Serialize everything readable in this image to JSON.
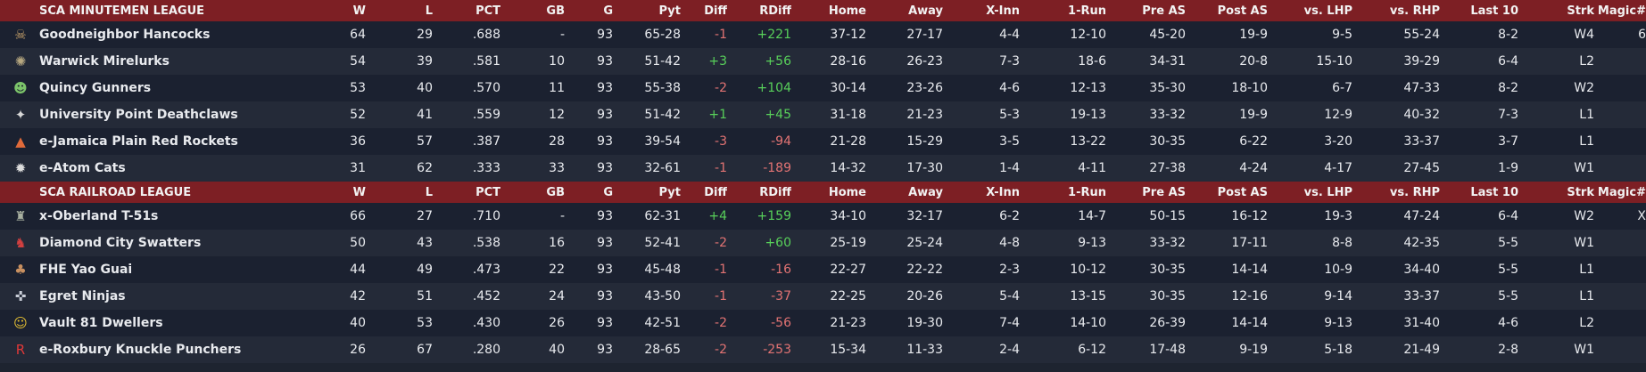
{
  "columns": {
    "w": "W",
    "l": "L",
    "pct": "PCT",
    "gb": "GB",
    "g": "G",
    "pyt": "Pyt",
    "diff": "Diff",
    "rdiff": "RDiff",
    "home": "Home",
    "away": "Away",
    "xinn": "X-Inn",
    "onerun": "1-Run",
    "preas": "Pre AS",
    "postas": "Post AS",
    "lhp": "vs. LHP",
    "rhp": "vs. RHP",
    "last10": "Last 10",
    "strk": "Strk",
    "magic": "Magic#"
  },
  "colors": {
    "header_bg": "#7d1f24",
    "positive": "#58d05a",
    "negative": "#e27373"
  },
  "leagues": [
    {
      "name": "SCA MINUTEMEN LEAGUE",
      "teams": [
        {
          "icon": "hancocks-icon",
          "glyph": "☠",
          "name": "Goodneighbor Hancocks",
          "w": "64",
          "l": "29",
          "pct": ".688",
          "gb": "-",
          "g": "93",
          "pyt": "65-28",
          "diff": "-1",
          "rdiff": "+221",
          "home": "37-12",
          "away": "27-17",
          "xinn": "4-4",
          "onerun": "12-10",
          "preas": "45-20",
          "postas": "19-9",
          "lhp": "9-5",
          "rhp": "55-24",
          "last10": "8-2",
          "strk": "W4",
          "magic": "6"
        },
        {
          "icon": "mirelurks-icon",
          "glyph": "✺",
          "name": "Warwick Mirelurks",
          "w": "54",
          "l": "39",
          "pct": ".581",
          "gb": "10",
          "g": "93",
          "pyt": "51-42",
          "diff": "+3",
          "rdiff": "+56",
          "home": "28-16",
          "away": "26-23",
          "xinn": "7-3",
          "onerun": "18-6",
          "preas": "34-31",
          "postas": "20-8",
          "lhp": "15-10",
          "rhp": "39-29",
          "last10": "6-4",
          "strk": "L2",
          "magic": ""
        },
        {
          "icon": "gunners-icon",
          "glyph": "☻",
          "name": "Quincy Gunners",
          "w": "53",
          "l": "40",
          "pct": ".570",
          "gb": "11",
          "g": "93",
          "pyt": "55-38",
          "diff": "-2",
          "rdiff": "+104",
          "home": "30-14",
          "away": "23-26",
          "xinn": "4-6",
          "onerun": "12-13",
          "preas": "35-30",
          "postas": "18-10",
          "lhp": "6-7",
          "rhp": "47-33",
          "last10": "8-2",
          "strk": "W2",
          "magic": ""
        },
        {
          "icon": "deathclaws-icon",
          "glyph": "✦",
          "name": "University Point Deathclaws",
          "w": "52",
          "l": "41",
          "pct": ".559",
          "gb": "12",
          "g": "93",
          "pyt": "51-42",
          "diff": "+1",
          "rdiff": "+45",
          "home": "31-18",
          "away": "21-23",
          "xinn": "5-3",
          "onerun": "19-13",
          "preas": "33-32",
          "postas": "19-9",
          "lhp": "12-9",
          "rhp": "40-32",
          "last10": "7-3",
          "strk": "L1",
          "magic": ""
        },
        {
          "icon": "red-rockets-icon",
          "glyph": "▲",
          "name": "e-Jamaica Plain Red Rockets",
          "w": "36",
          "l": "57",
          "pct": ".387",
          "gb": "28",
          "g": "93",
          "pyt": "39-54",
          "diff": "-3",
          "rdiff": "-94",
          "home": "21-28",
          "away": "15-29",
          "xinn": "3-5",
          "onerun": "13-22",
          "preas": "30-35",
          "postas": "6-22",
          "lhp": "3-20",
          "rhp": "33-37",
          "last10": "3-7",
          "strk": "L1",
          "magic": ""
        },
        {
          "icon": "atom-cats-icon",
          "glyph": "✹",
          "name": "e-Atom Cats",
          "w": "31",
          "l": "62",
          "pct": ".333",
          "gb": "33",
          "g": "93",
          "pyt": "32-61",
          "diff": "-1",
          "rdiff": "-189",
          "home": "14-32",
          "away": "17-30",
          "xinn": "1-4",
          "onerun": "4-11",
          "preas": "27-38",
          "postas": "4-24",
          "lhp": "4-17",
          "rhp": "27-45",
          "last10": "1-9",
          "strk": "W1",
          "magic": ""
        }
      ]
    },
    {
      "name": "SCA RAILROAD LEAGUE",
      "teams": [
        {
          "icon": "t51s-icon",
          "glyph": "♜",
          "name": "x-Oberland T-51s",
          "w": "66",
          "l": "27",
          "pct": ".710",
          "gb": "-",
          "g": "93",
          "pyt": "62-31",
          "diff": "+4",
          "rdiff": "+159",
          "home": "34-10",
          "away": "32-17",
          "xinn": "6-2",
          "onerun": "14-7",
          "preas": "50-15",
          "postas": "16-12",
          "lhp": "19-3",
          "rhp": "47-24",
          "last10": "6-4",
          "strk": "W2",
          "magic": "X"
        },
        {
          "icon": "swatters-icon",
          "glyph": "♞",
          "name": "Diamond City Swatters",
          "w": "50",
          "l": "43",
          "pct": ".538",
          "gb": "16",
          "g": "93",
          "pyt": "52-41",
          "diff": "-2",
          "rdiff": "+60",
          "home": "25-19",
          "away": "25-24",
          "xinn": "4-8",
          "onerun": "9-13",
          "preas": "33-32",
          "postas": "17-11",
          "lhp": "8-8",
          "rhp": "42-35",
          "last10": "5-5",
          "strk": "W1",
          "magic": ""
        },
        {
          "icon": "yao-guai-icon",
          "glyph": "♣",
          "name": "FHE Yao Guai",
          "w": "44",
          "l": "49",
          "pct": ".473",
          "gb": "22",
          "g": "93",
          "pyt": "45-48",
          "diff": "-1",
          "rdiff": "-16",
          "home": "22-27",
          "away": "22-22",
          "xinn": "2-3",
          "onerun": "10-12",
          "preas": "30-35",
          "postas": "14-14",
          "lhp": "10-9",
          "rhp": "34-40",
          "last10": "5-5",
          "strk": "L1",
          "magic": ""
        },
        {
          "icon": "ninjas-icon",
          "glyph": "✜",
          "name": "Egret Ninjas",
          "w": "42",
          "l": "51",
          "pct": ".452",
          "gb": "24",
          "g": "93",
          "pyt": "43-50",
          "diff": "-1",
          "rdiff": "-37",
          "home": "22-25",
          "away": "20-26",
          "xinn": "5-4",
          "onerun": "13-15",
          "preas": "30-35",
          "postas": "12-16",
          "lhp": "9-14",
          "rhp": "33-37",
          "last10": "5-5",
          "strk": "L1",
          "magic": ""
        },
        {
          "icon": "vault-dwellers-icon",
          "glyph": "☺",
          "name": "Vault 81 Dwellers",
          "w": "40",
          "l": "53",
          "pct": ".430",
          "gb": "26",
          "g": "93",
          "pyt": "42-51",
          "diff": "-2",
          "rdiff": "-56",
          "home": "21-23",
          "away": "19-30",
          "xinn": "7-4",
          "onerun": "14-10",
          "preas": "26-39",
          "postas": "14-14",
          "lhp": "9-13",
          "rhp": "31-40",
          "last10": "4-6",
          "strk": "L2",
          "magic": ""
        },
        {
          "icon": "knuckle-punchers-icon",
          "glyph": "R",
          "name": "e-Roxbury Knuckle Punchers",
          "w": "26",
          "l": "67",
          "pct": ".280",
          "gb": "40",
          "g": "93",
          "pyt": "28-65",
          "diff": "-2",
          "rdiff": "-253",
          "home": "15-34",
          "away": "11-33",
          "xinn": "2-4",
          "onerun": "6-12",
          "preas": "17-48",
          "postas": "9-19",
          "lhp": "5-18",
          "rhp": "21-49",
          "last10": "2-8",
          "strk": "W1",
          "magic": ""
        }
      ]
    }
  ]
}
